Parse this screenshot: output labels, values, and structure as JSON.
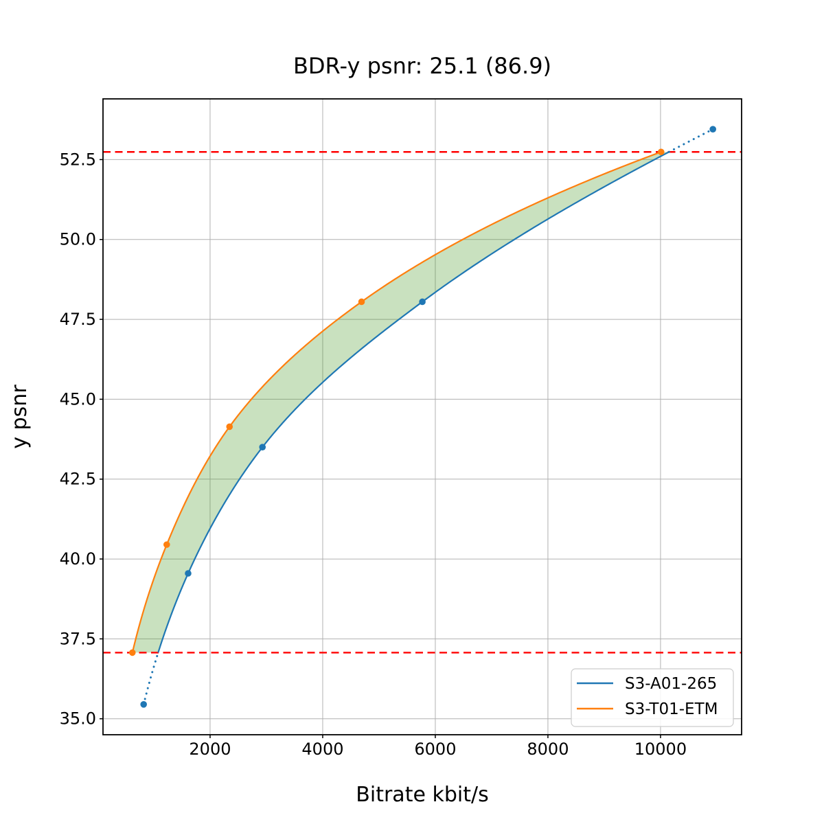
{
  "chart_data": {
    "type": "line",
    "title": "BDR-y psnr: 25.1 (86.9)",
    "xlabel": "Bitrate kbit/s",
    "ylabel": "y psnr",
    "xlim": [
      98,
      11440
    ],
    "ylim": [
      34.5,
      54.4
    ],
    "x_ticks": [
      2000,
      4000,
      6000,
      8000,
      10000
    ],
    "x_tick_labels": [
      "2000",
      "4000",
      "6000",
      "8000",
      "10000"
    ],
    "y_ticks": [
      35.0,
      37.5,
      40.0,
      42.5,
      45.0,
      47.5,
      50.0,
      52.5
    ],
    "y_tick_labels": [
      "35.0",
      "37.5",
      "40.0",
      "42.5",
      "45.0",
      "47.5",
      "50.0",
      "52.5"
    ],
    "grid": true,
    "series": [
      {
        "name": "S3-A01-265",
        "color": "#1f77b4",
        "marker": "circle",
        "points": [
          [
            820,
            35.45
          ],
          [
            1610,
            39.55
          ],
          [
            2930,
            43.5
          ],
          [
            5770,
            48.05
          ],
          [
            10930,
            53.45
          ]
        ]
      },
      {
        "name": "S3-T01-ETM",
        "color": "#ff7f0e",
        "marker": "circle",
        "points": [
          [
            620,
            37.07
          ],
          [
            1230,
            40.45
          ],
          [
            2345,
            44.14
          ],
          [
            4690,
            48.05
          ],
          [
            10010,
            52.74
          ]
        ]
      }
    ],
    "reference_hlines": {
      "values": [
        37.07,
        52.74
      ],
      "color": "#ff0000",
      "style": "dashed"
    },
    "band": {
      "between": [
        "S3-T01-ETM",
        "S3-A01-265"
      ],
      "psnr_range": [
        37.07,
        52.74
      ],
      "color": "#4c9a2a",
      "opacity": 0.3
    },
    "legend": {
      "position": "lower right",
      "items": [
        "S3-A01-265",
        "S3-T01-ETM"
      ],
      "border_color": "#cccccc",
      "background": "#ffffff"
    },
    "colors": {
      "grid": "#b0b0b0",
      "spine": "#000000",
      "text": "#000000"
    }
  }
}
